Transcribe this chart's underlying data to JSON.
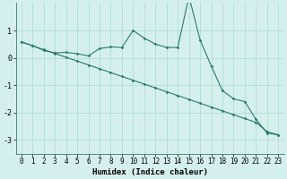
{
  "xlabel": "Humidex (Indice chaleur)",
  "background_color": "#d5f0ec",
  "grid_color": "#b0ddd7",
  "line_color": "#2a7a6a",
  "x_data": [
    0,
    1,
    2,
    3,
    4,
    5,
    6,
    7,
    8,
    9,
    10,
    11,
    12,
    13,
    14,
    15,
    16,
    17,
    18,
    19,
    20,
    21,
    22,
    23
  ],
  "y_line1": [
    0.58,
    0.45,
    0.27,
    0.18,
    0.2,
    0.15,
    0.07,
    0.34,
    0.4,
    0.38,
    1.0,
    0.72,
    0.5,
    0.38,
    0.38,
    2.25,
    0.65,
    -0.3,
    -1.2,
    -1.5,
    -1.6,
    -2.25,
    -2.75,
    -2.82
  ],
  "y_line2": [
    0.58,
    0.44,
    0.3,
    0.16,
    0.02,
    -0.12,
    -0.26,
    -0.4,
    -0.54,
    -0.68,
    -0.82,
    -0.96,
    -1.1,
    -1.24,
    -1.38,
    -1.52,
    -1.66,
    -1.8,
    -1.94,
    -2.08,
    -2.22,
    -2.36,
    -2.7,
    -2.82
  ],
  "ylim": [
    -3.5,
    2.0
  ],
  "xlim": [
    -0.5,
    23.5
  ],
  "yticks": [
    -3,
    -2,
    -1,
    0,
    1
  ],
  "xticks": [
    0,
    1,
    2,
    3,
    4,
    5,
    6,
    7,
    8,
    9,
    10,
    11,
    12,
    13,
    14,
    15,
    16,
    17,
    18,
    19,
    20,
    21,
    22,
    23
  ],
  "xtick_labels": [
    "0",
    "1",
    "2",
    "3",
    "4",
    "5",
    "6",
    "7",
    "8",
    "9",
    "10",
    "11",
    "12",
    "13",
    "14",
    "15",
    "16",
    "17",
    "18",
    "19",
    "20",
    "21",
    "22",
    "23"
  ],
  "marker": "D",
  "marker_size": 1.8,
  "linewidth": 0.8,
  "tick_fontsize": 5.5,
  "xlabel_fontsize": 6.5
}
